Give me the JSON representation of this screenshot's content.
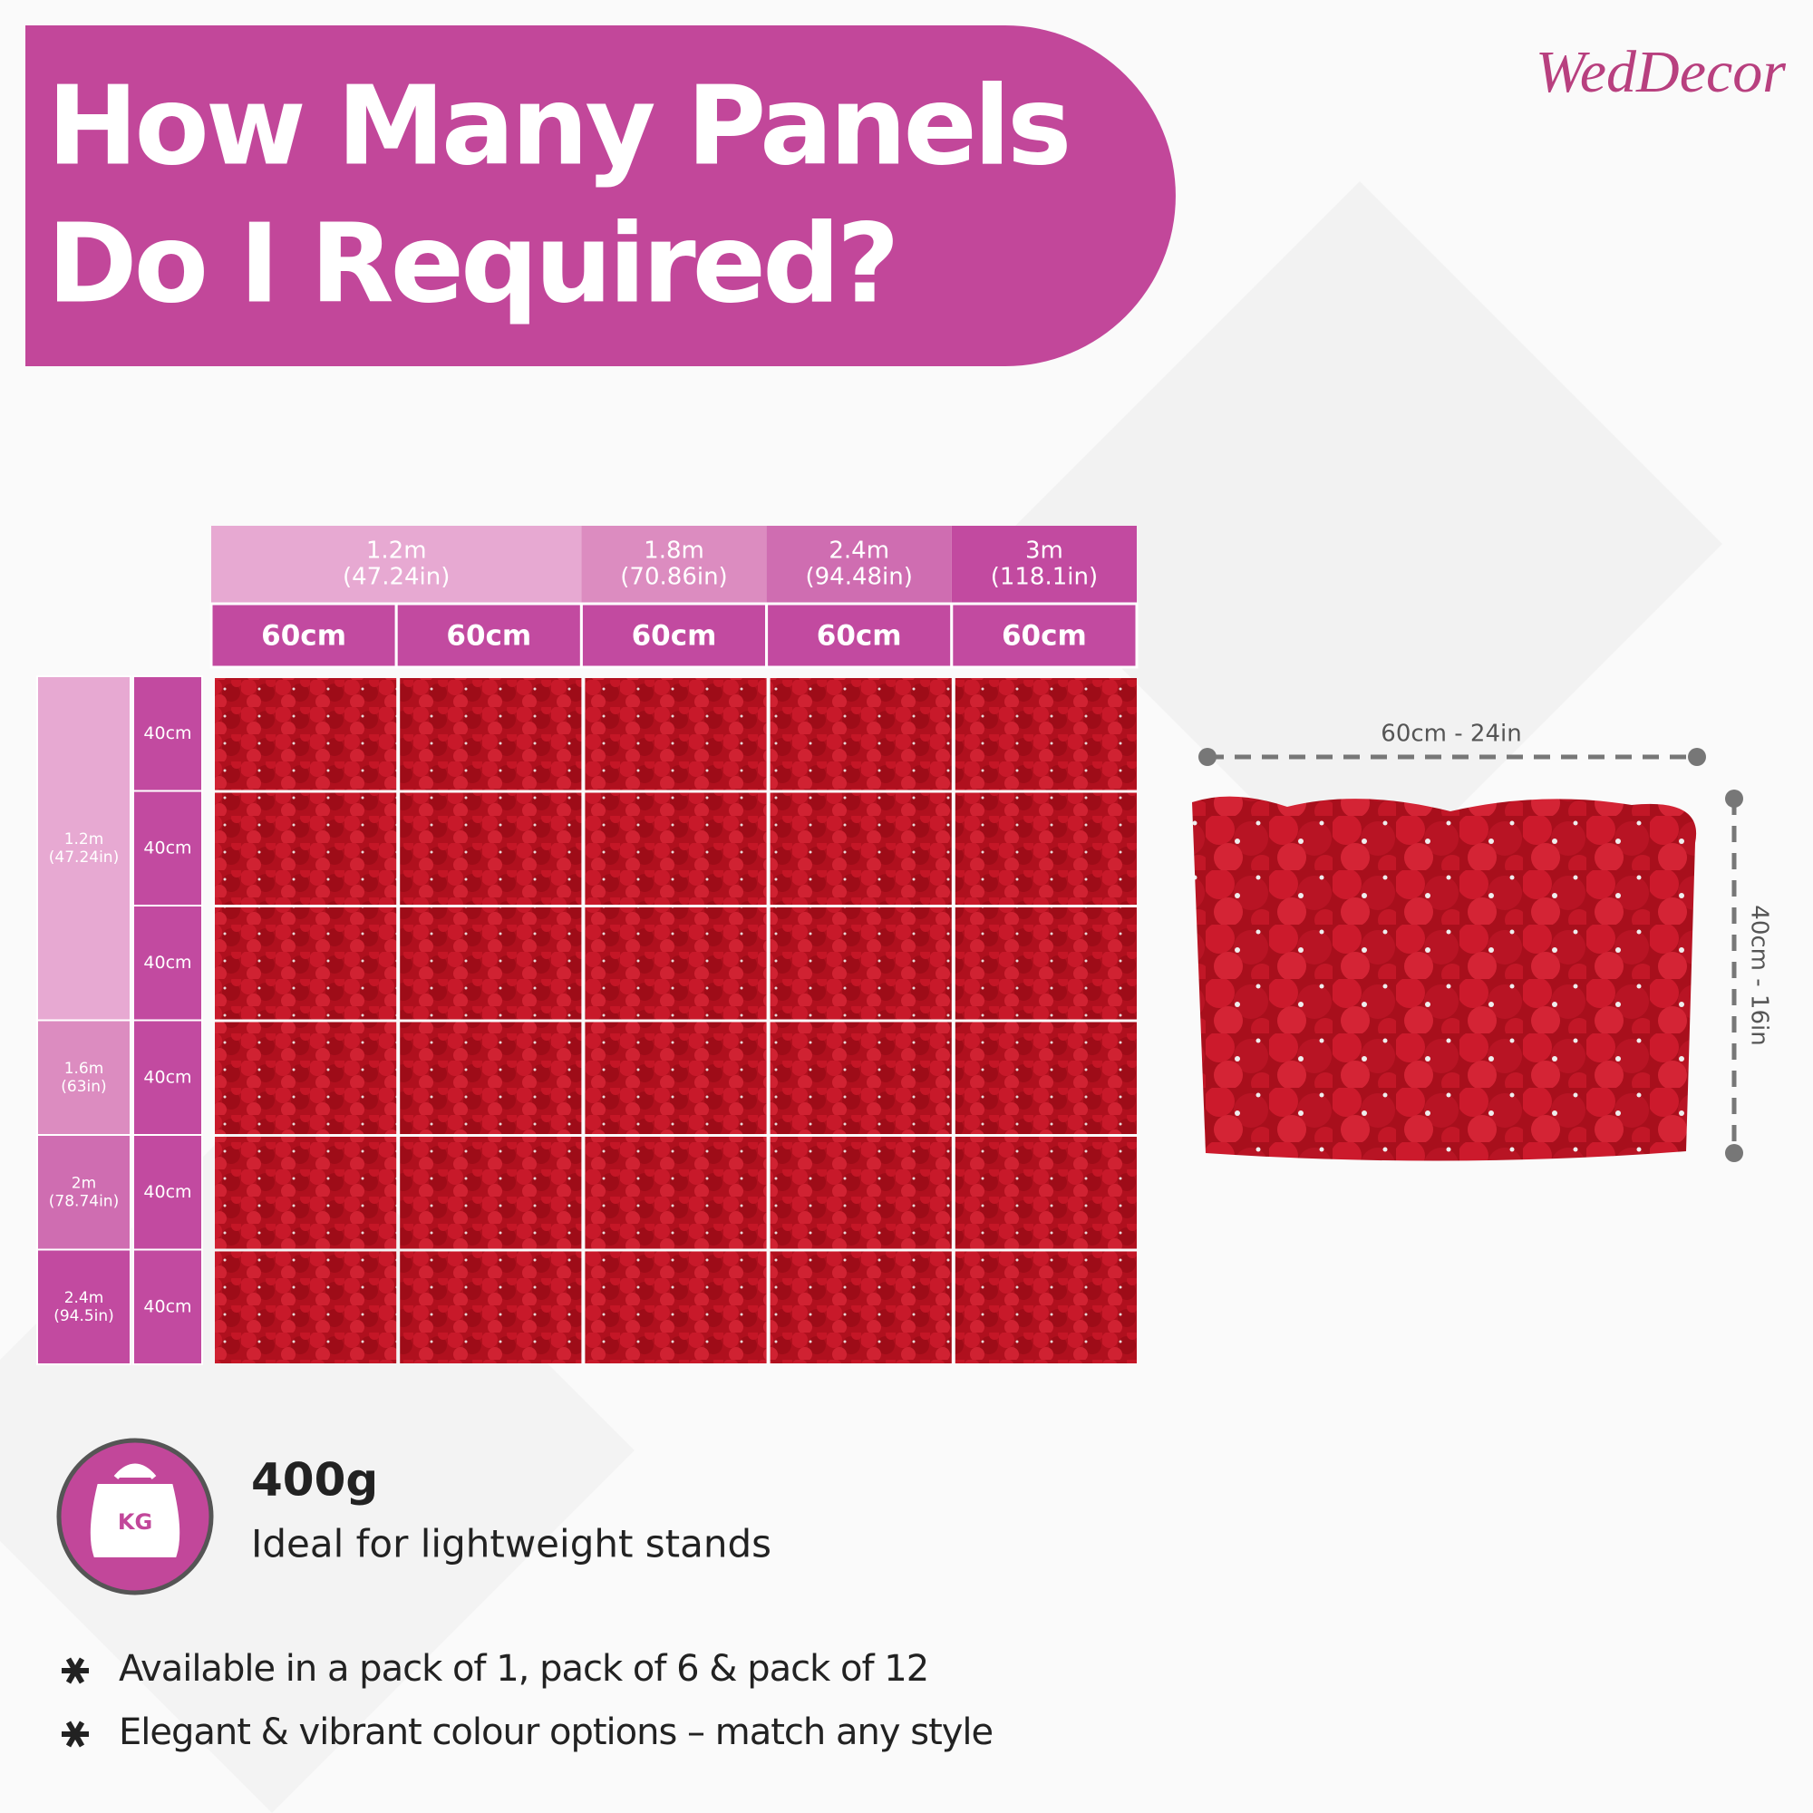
{
  "logo": "WedDecor",
  "title": [
    "How Many Panels",
    "Do I Required?"
  ],
  "table": {
    "width_groups": [
      {
        "size": "1.2m",
        "inches": "(47.24in)",
        "panels": [
          "60cm",
          "60cm"
        ]
      },
      {
        "size": "1.8m",
        "inches": "(70.86in)",
        "panels": [
          "60cm"
        ]
      },
      {
        "size": "2.4m",
        "inches": "(94.48in)",
        "panels": [
          "60cm"
        ]
      },
      {
        "size": "3m",
        "inches": "(118.1in)",
        "panels": [
          "60cm"
        ]
      }
    ],
    "height_groups": [
      {
        "size": "1.2m",
        "inches": "(47.24in)",
        "panels": [
          "40cm",
          "40cm",
          "40cm"
        ]
      },
      {
        "size": "1.6m",
        "inches": "(63in)",
        "panels": [
          "40cm"
        ]
      },
      {
        "size": "2m",
        "inches": "(78.74in)",
        "panels": [
          "40cm"
        ]
      },
      {
        "size": "2.4m",
        "inches": "(94.5in)",
        "panels": [
          "40cm"
        ]
      }
    ]
  },
  "panel_dimensions": {
    "width": "60cm - 24in",
    "height": "40cm - 16in"
  },
  "weight": {
    "icon": "KG",
    "value": "400g",
    "note": "Ideal for lightweight stands"
  },
  "bullets": [
    "Available in a pack of 1, pack of 6 & pack of 12",
    "Elegant & vibrant colour options – match any style"
  ]
}
